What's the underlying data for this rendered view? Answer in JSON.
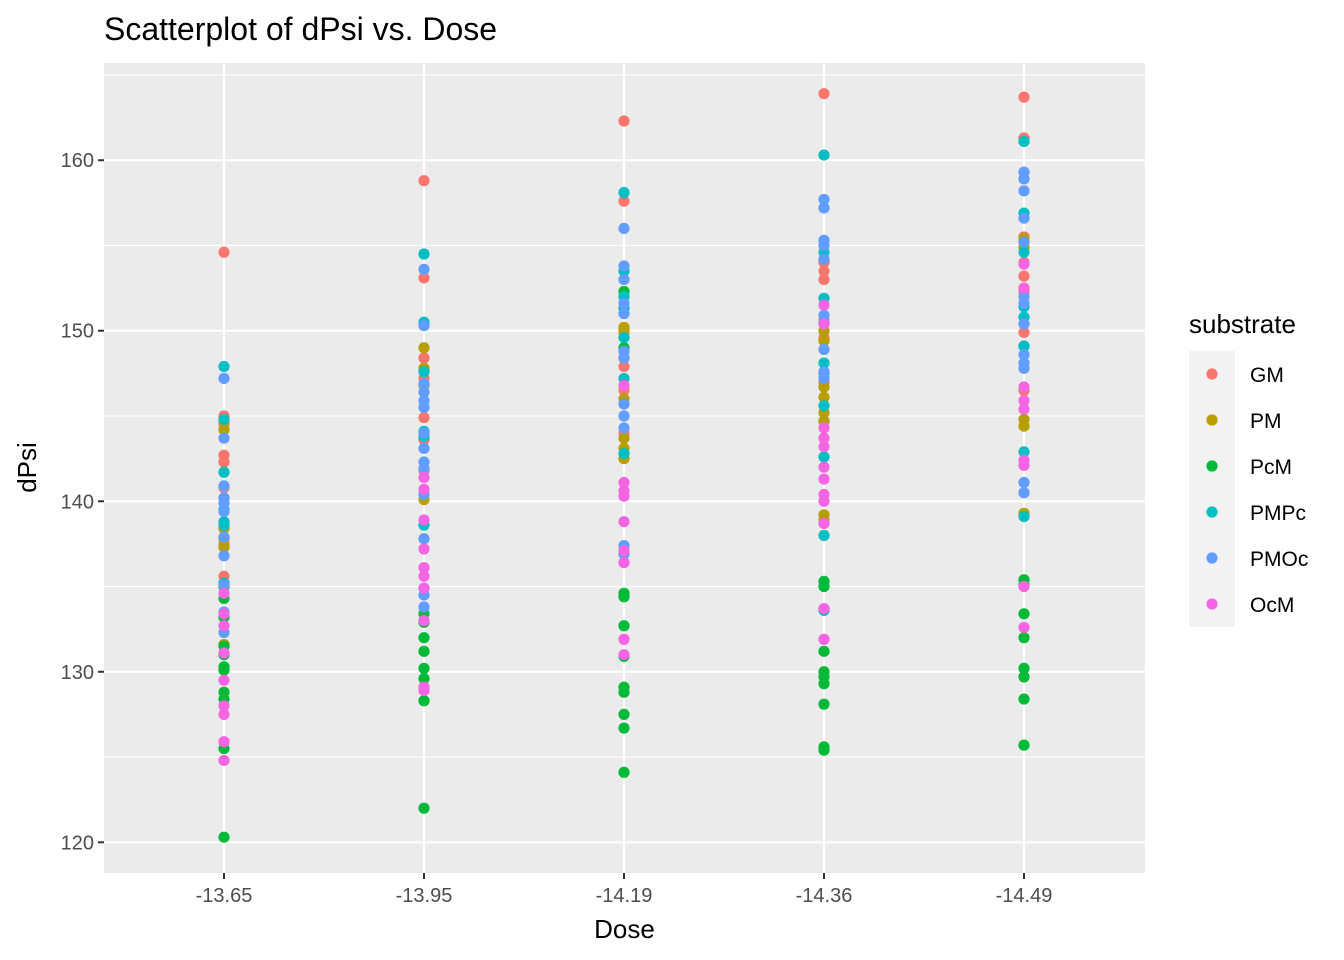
{
  "chart_data": {
    "type": "scatter",
    "title": "Scatterplot of dPsi vs. Dose",
    "xlabel": "Dose",
    "ylabel": "dPsi",
    "categories": [
      "-13.65",
      "-13.95",
      "-14.19",
      "-14.36",
      "-14.49"
    ],
    "y_ticks": [
      "120",
      "130",
      "140",
      "150",
      "160"
    ],
    "ylim": [
      118.2,
      165.7
    ],
    "grid": true,
    "legend": {
      "title": "substrate",
      "position": "right"
    },
    "colors": {
      "panel_bg": "#ebebeb",
      "grid": "#ffffff"
    },
    "series": [
      {
        "name": "GM",
        "color": "#f8766d",
        "points": [
          [
            "-13.65",
            154.6
          ],
          [
            "-13.65",
            145.0
          ],
          [
            "-13.65",
            144.5
          ],
          [
            "-13.65",
            142.7
          ],
          [
            "-13.65",
            142.3
          ],
          [
            "-13.65",
            140.8
          ],
          [
            "-13.65",
            137.5
          ],
          [
            "-13.65",
            135.6
          ],
          [
            "-13.95",
            158.8
          ],
          [
            "-13.95",
            153.1
          ],
          [
            "-13.95",
            148.4
          ],
          [
            "-13.95",
            147.2
          ],
          [
            "-13.95",
            144.9
          ],
          [
            "-13.95",
            143.6
          ],
          [
            "-13.95",
            141.8
          ],
          [
            "-13.95",
            140.6
          ],
          [
            "-14.19",
            162.3
          ],
          [
            "-14.19",
            157.6
          ],
          [
            "-14.19",
            150.1
          ],
          [
            "-14.19",
            148.4
          ],
          [
            "-14.19",
            147.9
          ],
          [
            "-14.19",
            146.5
          ],
          [
            "-14.19",
            144.0
          ],
          [
            "-14.36",
            163.9
          ],
          [
            "-14.36",
            154.0
          ],
          [
            "-14.36",
            153.5
          ],
          [
            "-14.36",
            153.0
          ],
          [
            "-14.36",
            150.6
          ],
          [
            "-14.36",
            149.6
          ],
          [
            "-14.36",
            147.0
          ],
          [
            "-14.36",
            144.7
          ],
          [
            "-14.49",
            163.7
          ],
          [
            "-14.49",
            161.3
          ],
          [
            "-14.49",
            155.5
          ],
          [
            "-14.49",
            154.0
          ],
          [
            "-14.49",
            153.2
          ],
          [
            "-14.49",
            152.3
          ],
          [
            "-14.49",
            149.9
          ],
          [
            "-14.49",
            146.5
          ],
          [
            "-14.49",
            140.5
          ]
        ]
      },
      {
        "name": "PM",
        "color": "#b79f00",
        "points": [
          [
            "-13.65",
            144.7
          ],
          [
            "-13.65",
            144.2
          ],
          [
            "-13.65",
            138.4
          ],
          [
            "-13.65",
            137.8
          ],
          [
            "-13.65",
            137.3
          ],
          [
            "-13.65",
            131.6
          ],
          [
            "-13.95",
            149.0
          ],
          [
            "-13.95",
            147.8
          ],
          [
            "-13.95",
            146.8
          ],
          [
            "-13.95",
            144.0
          ],
          [
            "-13.95",
            140.1
          ],
          [
            "-14.19",
            150.2
          ],
          [
            "-14.19",
            149.9
          ],
          [
            "-14.19",
            146.0
          ],
          [
            "-14.19",
            143.7
          ],
          [
            "-14.19",
            143.1
          ],
          [
            "-14.19",
            142.5
          ],
          [
            "-14.36",
            150.0
          ],
          [
            "-14.36",
            149.4
          ],
          [
            "-14.36",
            146.7
          ],
          [
            "-14.36",
            146.1
          ],
          [
            "-14.36",
            145.2
          ],
          [
            "-14.36",
            144.7
          ],
          [
            "-14.36",
            139.2
          ],
          [
            "-14.36",
            138.9
          ],
          [
            "-14.49",
            155.4
          ],
          [
            "-14.49",
            154.9
          ],
          [
            "-14.49",
            144.8
          ],
          [
            "-14.49",
            144.4
          ],
          [
            "-14.49",
            139.3
          ]
        ]
      },
      {
        "name": "PcM",
        "color": "#00ba38",
        "points": [
          [
            "-13.65",
            135.0
          ],
          [
            "-13.65",
            134.3
          ],
          [
            "-13.65",
            133.2
          ],
          [
            "-13.65",
            131.5
          ],
          [
            "-13.65",
            131.0
          ],
          [
            "-13.65",
            130.3
          ],
          [
            "-13.65",
            130.1
          ],
          [
            "-13.65",
            128.8
          ],
          [
            "-13.65",
            128.4
          ],
          [
            "-13.65",
            125.5
          ],
          [
            "-13.65",
            120.3
          ],
          [
            "-13.95",
            133.4
          ],
          [
            "-13.95",
            132.9
          ],
          [
            "-13.95",
            132.0
          ],
          [
            "-13.95",
            131.2
          ],
          [
            "-13.95",
            130.2
          ],
          [
            "-13.95",
            129.6
          ],
          [
            "-13.95",
            128.3
          ],
          [
            "-13.95",
            122.0
          ],
          [
            "-14.19",
            152.3
          ],
          [
            "-14.19",
            149.0
          ],
          [
            "-14.19",
            134.6
          ],
          [
            "-14.19",
            134.4
          ],
          [
            "-14.19",
            132.7
          ],
          [
            "-14.19",
            130.9
          ],
          [
            "-14.19",
            129.1
          ],
          [
            "-14.19",
            128.8
          ],
          [
            "-14.19",
            127.5
          ],
          [
            "-14.19",
            126.7
          ],
          [
            "-14.19",
            124.1
          ],
          [
            "-14.36",
            135.3
          ],
          [
            "-14.36",
            135.0
          ],
          [
            "-14.36",
            131.2
          ],
          [
            "-14.36",
            130.0
          ],
          [
            "-14.36",
            129.7
          ],
          [
            "-14.36",
            129.3
          ],
          [
            "-14.36",
            128.1
          ],
          [
            "-14.36",
            125.6
          ],
          [
            "-14.36",
            125.4
          ],
          [
            "-14.49",
            149.1
          ],
          [
            "-14.49",
            135.4
          ],
          [
            "-14.49",
            135.1
          ],
          [
            "-14.49",
            133.4
          ],
          [
            "-14.49",
            132.0
          ],
          [
            "-14.49",
            130.2
          ],
          [
            "-14.49",
            129.7
          ],
          [
            "-14.49",
            128.4
          ],
          [
            "-14.49",
            125.7
          ]
        ]
      },
      {
        "name": "PMPc",
        "color": "#00bfc4",
        "points": [
          [
            "-13.65",
            147.9
          ],
          [
            "-13.65",
            144.8
          ],
          [
            "-13.65",
            141.7
          ],
          [
            "-13.65",
            139.5
          ],
          [
            "-13.65",
            138.8
          ],
          [
            "-13.65",
            138.6
          ],
          [
            "-13.65",
            135.2
          ],
          [
            "-13.95",
            154.5
          ],
          [
            "-13.95",
            150.5
          ],
          [
            "-13.95",
            147.6
          ],
          [
            "-13.95",
            144.1
          ],
          [
            "-13.95",
            143.8
          ],
          [
            "-13.95",
            138.6
          ],
          [
            "-14.19",
            158.1
          ],
          [
            "-14.19",
            153.5
          ],
          [
            "-14.19",
            152.0
          ],
          [
            "-14.19",
            151.3
          ],
          [
            "-14.19",
            149.6
          ],
          [
            "-14.19",
            147.2
          ],
          [
            "-14.19",
            142.8
          ],
          [
            "-14.36",
            160.3
          ],
          [
            "-14.36",
            154.6
          ],
          [
            "-14.36",
            151.9
          ],
          [
            "-14.36",
            148.1
          ],
          [
            "-14.36",
            147.5
          ],
          [
            "-14.36",
            145.6
          ],
          [
            "-14.36",
            142.6
          ],
          [
            "-14.36",
            138.0
          ],
          [
            "-14.36",
            133.6
          ],
          [
            "-14.49",
            161.1
          ],
          [
            "-14.49",
            156.9
          ],
          [
            "-14.49",
            154.6
          ],
          [
            "-14.49",
            151.4
          ],
          [
            "-14.49",
            150.8
          ],
          [
            "-14.49",
            149.1
          ],
          [
            "-14.49",
            142.9
          ],
          [
            "-14.49",
            139.1
          ]
        ]
      },
      {
        "name": "PMOc",
        "color": "#619cff",
        "points": [
          [
            "-13.65",
            147.2
          ],
          [
            "-13.65",
            143.7
          ],
          [
            "-13.65",
            140.9
          ],
          [
            "-13.65",
            140.2
          ],
          [
            "-13.65",
            139.9
          ],
          [
            "-13.65",
            139.4
          ],
          [
            "-13.65",
            137.9
          ],
          [
            "-13.65",
            136.8
          ],
          [
            "-13.65",
            135.1
          ],
          [
            "-13.65",
            133.5
          ],
          [
            "-13.65",
            132.3
          ],
          [
            "-13.95",
            153.6
          ],
          [
            "-13.95",
            150.3
          ],
          [
            "-13.95",
            146.9
          ],
          [
            "-13.95",
            146.4
          ],
          [
            "-13.95",
            145.9
          ],
          [
            "-13.95",
            145.5
          ],
          [
            "-13.95",
            144.0
          ],
          [
            "-13.95",
            143.1
          ],
          [
            "-13.95",
            142.3
          ],
          [
            "-13.95",
            141.9
          ],
          [
            "-13.95",
            140.4
          ],
          [
            "-13.95",
            137.8
          ],
          [
            "-13.95",
            134.9
          ],
          [
            "-13.95",
            134.5
          ],
          [
            "-13.95",
            133.8
          ],
          [
            "-14.19",
            156.0
          ],
          [
            "-14.19",
            153.8
          ],
          [
            "-14.19",
            153.0
          ],
          [
            "-14.19",
            151.6
          ],
          [
            "-14.19",
            151.0
          ],
          [
            "-14.19",
            148.8
          ],
          [
            "-14.19",
            148.4
          ],
          [
            "-14.19",
            145.7
          ],
          [
            "-14.19",
            145.0
          ],
          [
            "-14.19",
            144.3
          ],
          [
            "-14.19",
            137.4
          ],
          [
            "-14.19",
            136.9
          ],
          [
            "-14.36",
            157.7
          ],
          [
            "-14.36",
            157.2
          ],
          [
            "-14.36",
            155.3
          ],
          [
            "-14.36",
            155.0
          ],
          [
            "-14.36",
            154.2
          ],
          [
            "-14.36",
            150.9
          ],
          [
            "-14.36",
            150.5
          ],
          [
            "-14.36",
            148.9
          ],
          [
            "-14.36",
            147.6
          ],
          [
            "-14.36",
            147.2
          ],
          [
            "-14.36",
            133.7
          ],
          [
            "-14.49",
            159.3
          ],
          [
            "-14.49",
            158.9
          ],
          [
            "-14.49",
            158.2
          ],
          [
            "-14.49",
            156.6
          ],
          [
            "-14.49",
            155.2
          ],
          [
            "-14.49",
            152.0
          ],
          [
            "-14.49",
            151.6
          ],
          [
            "-14.49",
            150.4
          ],
          [
            "-14.49",
            148.6
          ],
          [
            "-14.49",
            148.1
          ],
          [
            "-14.49",
            147.8
          ],
          [
            "-14.49",
            141.1
          ],
          [
            "-14.49",
            140.5
          ]
        ]
      },
      {
        "name": "OcM",
        "color": "#f564e3",
        "points": [
          [
            "-13.65",
            134.6
          ],
          [
            "-13.65",
            133.4
          ],
          [
            "-13.65",
            132.7
          ],
          [
            "-13.65",
            131.1
          ],
          [
            "-13.65",
            129.5
          ],
          [
            "-13.65",
            128.0
          ],
          [
            "-13.65",
            127.5
          ],
          [
            "-13.65",
            125.9
          ],
          [
            "-13.65",
            124.8
          ],
          [
            "-13.95",
            141.4
          ],
          [
            "-13.95",
            140.7
          ],
          [
            "-13.95",
            138.9
          ],
          [
            "-13.95",
            137.2
          ],
          [
            "-13.95",
            136.1
          ],
          [
            "-13.95",
            135.6
          ],
          [
            "-13.95",
            134.9
          ],
          [
            "-13.95",
            133.0
          ],
          [
            "-13.95",
            129.1
          ],
          [
            "-13.95",
            128.9
          ],
          [
            "-14.19",
            146.8
          ],
          [
            "-14.19",
            141.1
          ],
          [
            "-14.19",
            140.6
          ],
          [
            "-14.19",
            140.3
          ],
          [
            "-14.19",
            138.8
          ],
          [
            "-14.19",
            137.1
          ],
          [
            "-14.19",
            136.4
          ],
          [
            "-14.19",
            131.9
          ],
          [
            "-14.19",
            131.0
          ],
          [
            "-14.36",
            151.5
          ],
          [
            "-14.36",
            150.4
          ],
          [
            "-14.36",
            144.3
          ],
          [
            "-14.36",
            143.7
          ],
          [
            "-14.36",
            143.2
          ],
          [
            "-14.36",
            142.0
          ],
          [
            "-14.36",
            141.3
          ],
          [
            "-14.36",
            140.4
          ],
          [
            "-14.36",
            140.0
          ],
          [
            "-14.36",
            138.7
          ],
          [
            "-14.36",
            133.7
          ],
          [
            "-14.36",
            131.9
          ],
          [
            "-14.49",
            153.9
          ],
          [
            "-14.49",
            152.5
          ],
          [
            "-14.49",
            146.7
          ],
          [
            "-14.49",
            145.9
          ],
          [
            "-14.49",
            145.4
          ],
          [
            "-14.49",
            142.4
          ],
          [
            "-14.49",
            142.1
          ],
          [
            "-14.49",
            135.0
          ],
          [
            "-14.49",
            132.6
          ]
        ]
      }
    ]
  }
}
